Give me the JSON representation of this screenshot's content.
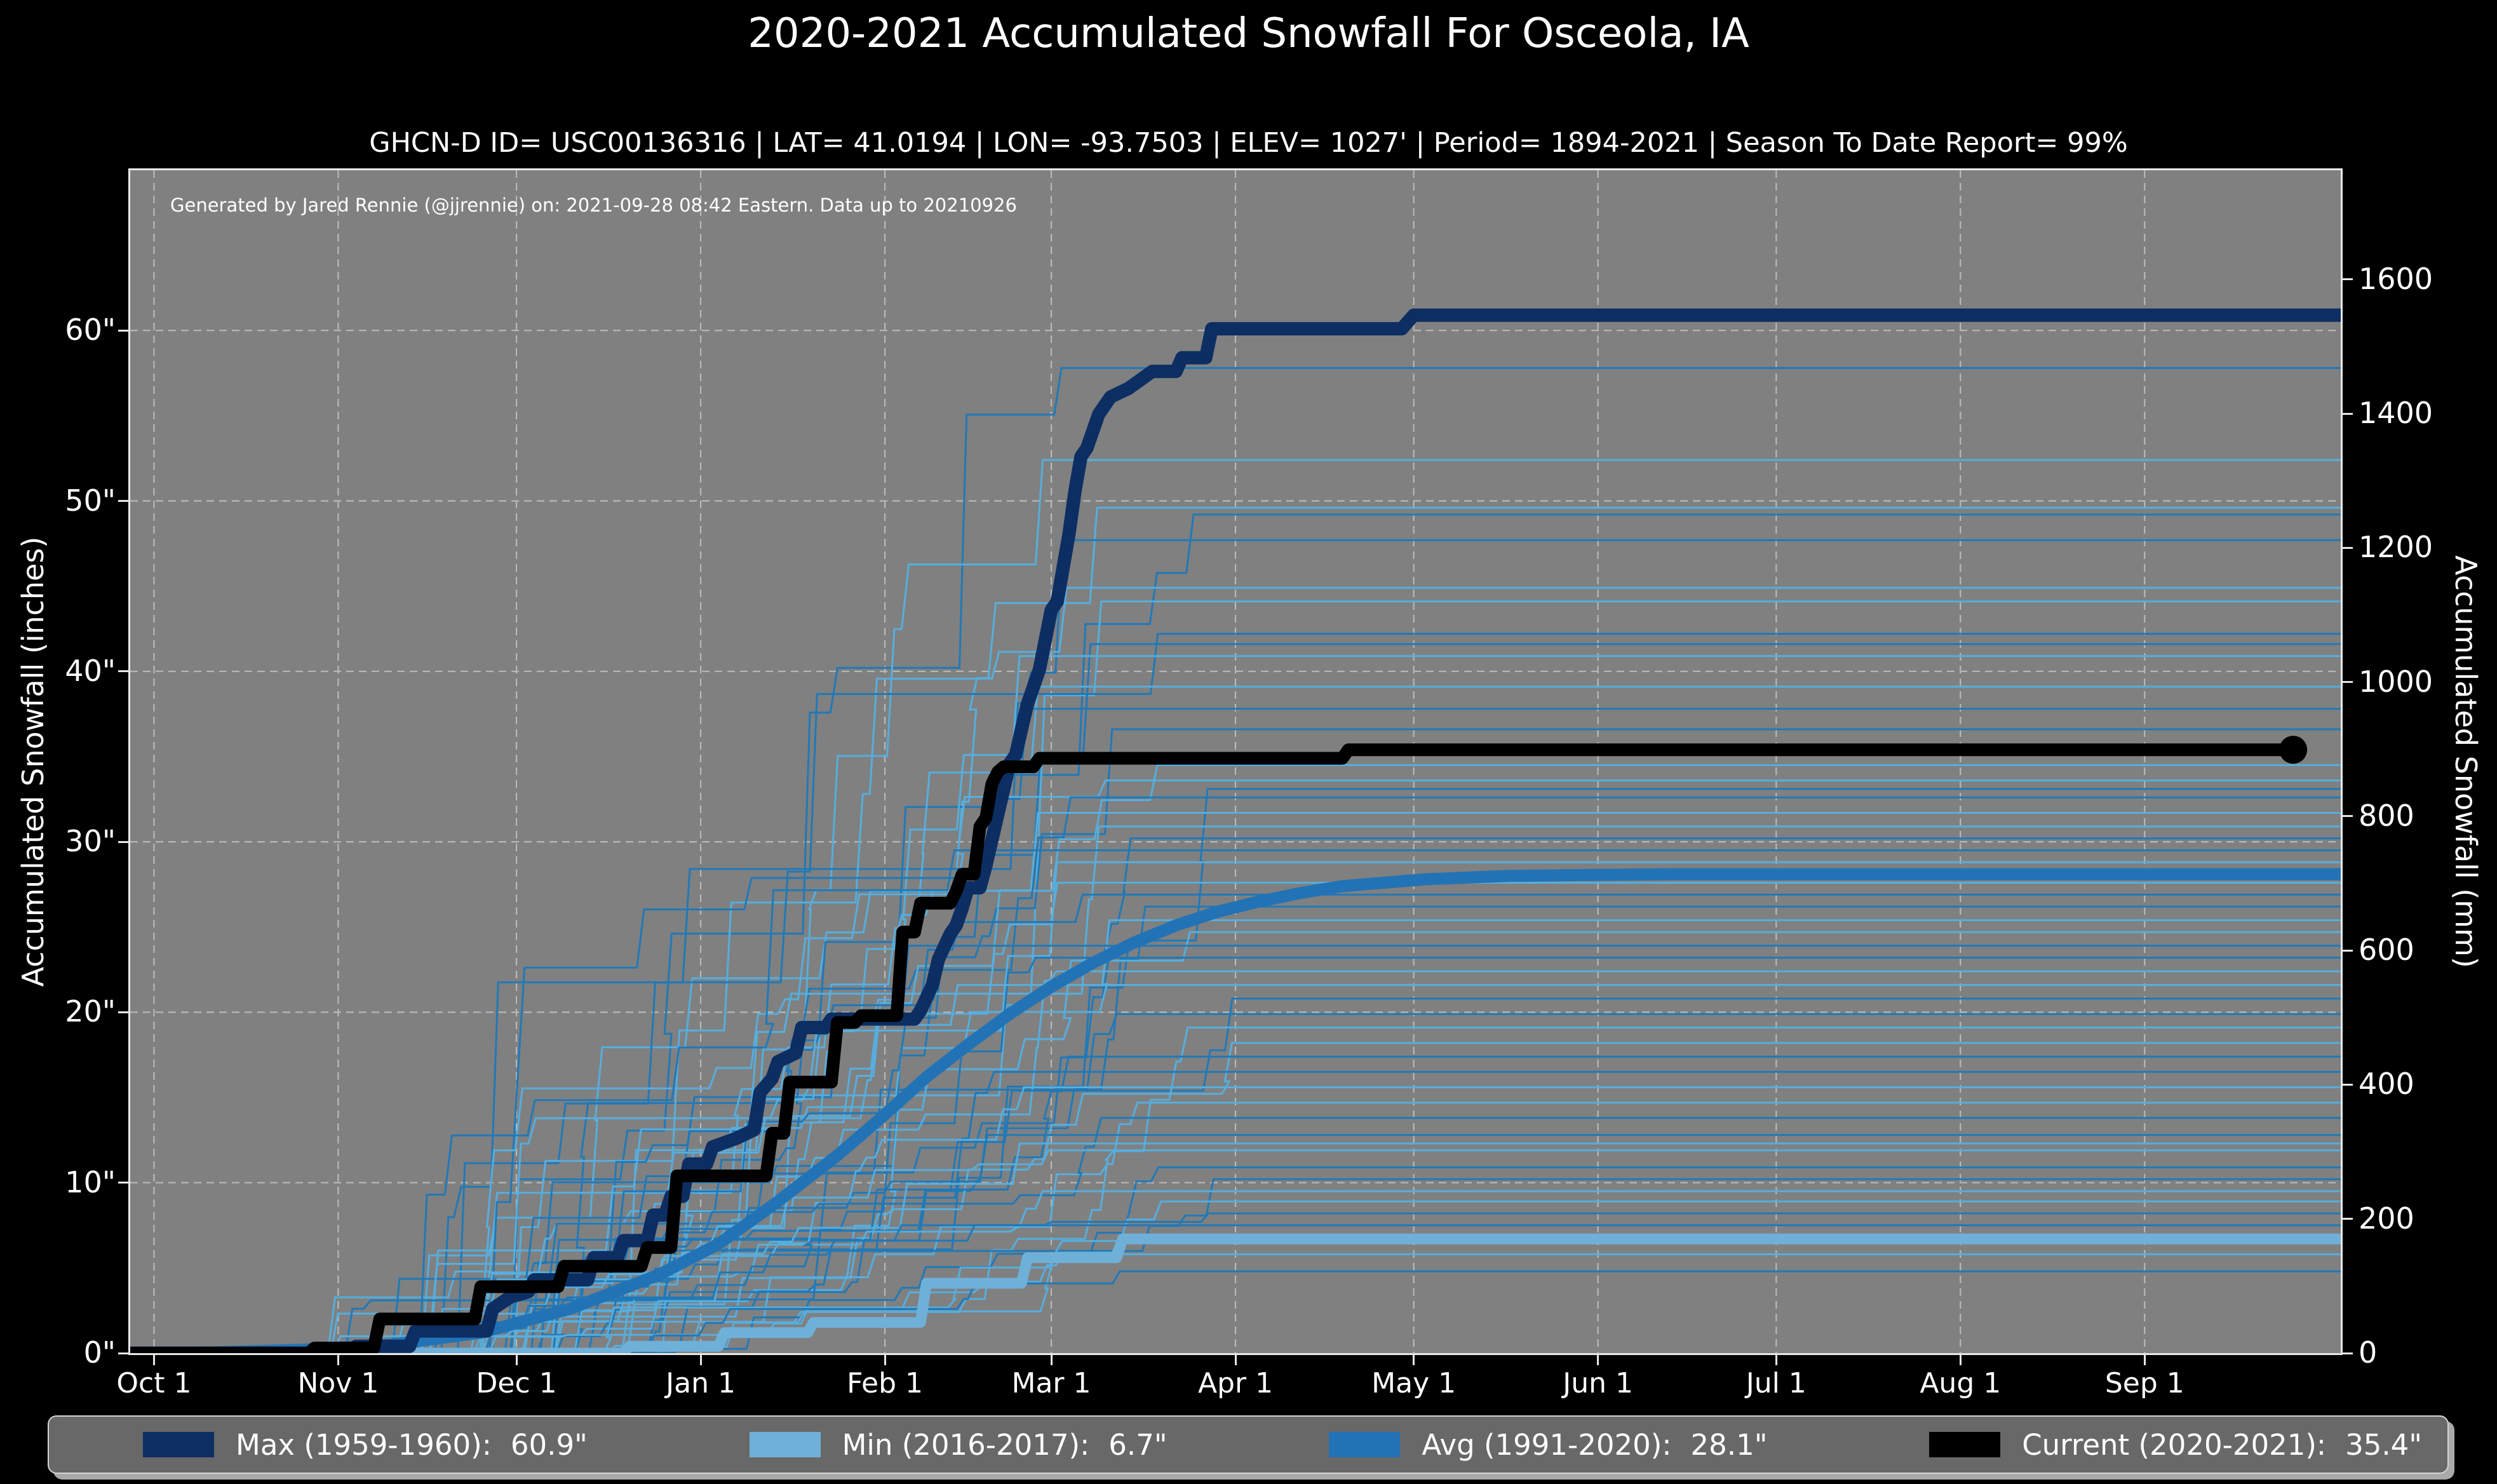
{
  "title": "2020-2021 Accumulated Snowfall For Osceola, IA",
  "subtitle": "GHCN-D ID= USC00136316 | LAT= 41.0194 | LON= -93.7503 | ELEV= 1027' | Period= 1894-2021 | Season To Date Report= 99%",
  "annotation": "Generated by Jared Rennie (@jjrennie) on: 2021-09-28 08:42 Eastern. Data up to 20210926",
  "colors": {
    "page_bg": "#000000",
    "plot_bg": "#808080",
    "grid": "#b8b8b8",
    "spine": "#e8e8e8",
    "text": "#ffffff",
    "max_line": "#0d2e63",
    "min_line": "#6fb0d9",
    "avg_line": "#2273b5",
    "current_line": "#000000",
    "legend_bg": "#686868"
  },
  "legend": {
    "entries": [
      {
        "name": "Max (1959-1960):",
        "value": "60.9\"",
        "color": "#0d2e63"
      },
      {
        "name": "Min (2016-2017):",
        "value": "6.7\"",
        "color": "#6fb0d9"
      },
      {
        "name": "Avg (1991-2020):",
        "value": "28.1\"",
        "color": "#2273b5"
      },
      {
        "name": "Current (2020-2021):",
        "value": "35.4\"",
        "color": "#000000"
      }
    ]
  },
  "chart_data": {
    "type": "line",
    "title": "2020-2021 Accumulated Snowfall For Osceola, IA",
    "ylabel_left": "Accumulated Snowfall (inches)",
    "ylabel_right": "Accumulated Snowfall (mm)",
    "x_unit": "days since Oct 1",
    "x_domain_days": [
      -4,
      368
    ],
    "y_domain_inches": [
      0,
      69.4
    ],
    "grid": {
      "style": "dashed",
      "color": "#b8b8b8"
    },
    "x_ticks": [
      {
        "label": "Oct 1",
        "day": 0
      },
      {
        "label": "Nov 1",
        "day": 31
      },
      {
        "label": "Dec 1",
        "day": 61
      },
      {
        "label": "Jan 1",
        "day": 92
      },
      {
        "label": "Feb 1",
        "day": 123
      },
      {
        "label": "Mar 1",
        "day": 151
      },
      {
        "label": "Apr 1",
        "day": 182
      },
      {
        "label": "May 1",
        "day": 212
      },
      {
        "label": "Jun 1",
        "day": 243
      },
      {
        "label": "Jul 1",
        "day": 273
      },
      {
        "label": "Aug 1",
        "day": 304
      },
      {
        "label": "Sep 1",
        "day": 335
      }
    ],
    "y_ticks_inches": [
      {
        "label": "0\"",
        "in": 0
      },
      {
        "label": "10\"",
        "in": 10
      },
      {
        "label": "20\"",
        "in": 20
      },
      {
        "label": "30\"",
        "in": 30
      },
      {
        "label": "40\"",
        "in": 40
      },
      {
        "label": "50\"",
        "in": 50
      },
      {
        "label": "60\"",
        "in": 60
      }
    ],
    "y_ticks_mm": [
      {
        "label": "0",
        "mm": 0
      },
      {
        "label": "200",
        "mm": 200
      },
      {
        "label": "400",
        "mm": 400
      },
      {
        "label": "600",
        "mm": 600
      },
      {
        "label": "800",
        "mm": 800
      },
      {
        "label": "1000",
        "mm": 1000
      },
      {
        "label": "1200",
        "mm": 1200
      },
      {
        "label": "1400",
        "mm": 1400
      },
      {
        "label": "1600",
        "mm": 1600
      }
    ],
    "series": [
      {
        "name": "Max (1959-1960)",
        "total_inches": 60.9,
        "color": "#0d2e63",
        "width": 21,
        "points": [
          [
            -4,
            0
          ],
          [
            33,
            0
          ],
          [
            34,
            0.4
          ],
          [
            43,
            0.4
          ],
          [
            44,
            1.3
          ],
          [
            56,
            1.3
          ],
          [
            57,
            2.6
          ],
          [
            60,
            3.3
          ],
          [
            63,
            3.6
          ],
          [
            64,
            4.3
          ],
          [
            73,
            4.3
          ],
          [
            74,
            5.6
          ],
          [
            78,
            5.6
          ],
          [
            79,
            6.6
          ],
          [
            83,
            6.6
          ],
          [
            84,
            8.1
          ],
          [
            86,
            8.1
          ],
          [
            87,
            9.2
          ],
          [
            89,
            9.2
          ],
          [
            90,
            11.1
          ],
          [
            93,
            11.1
          ],
          [
            94,
            12.1
          ],
          [
            98,
            12.6
          ],
          [
            101,
            13.1
          ],
          [
            102,
            15.3
          ],
          [
            104,
            16.1
          ],
          [
            105,
            17.1
          ],
          [
            108,
            17.6
          ],
          [
            109,
            19.1
          ],
          [
            113,
            19.1
          ],
          [
            114,
            19.6
          ],
          [
            128,
            19.6
          ],
          [
            129,
            20.1
          ],
          [
            131,
            21.6
          ],
          [
            132,
            23.1
          ],
          [
            134,
            24.6
          ],
          [
            135,
            25.1
          ],
          [
            136,
            26.1
          ],
          [
            137,
            27.3
          ],
          [
            139,
            27.3
          ],
          [
            140,
            28.6
          ],
          [
            141,
            30.1
          ],
          [
            142,
            31.6
          ],
          [
            143,
            33.1
          ],
          [
            144,
            34.6
          ],
          [
            145,
            35.1
          ],
          [
            146,
            36.6
          ],
          [
            147,
            38.1
          ],
          [
            149,
            40.1
          ],
          [
            151,
            43.6
          ],
          [
            152,
            44.1
          ],
          [
            154,
            48.1
          ],
          [
            155,
            50.6
          ],
          [
            156,
            52.6
          ],
          [
            157,
            53.1
          ],
          [
            159,
            55.1
          ],
          [
            161,
            56.1
          ],
          [
            164,
            56.6
          ],
          [
            166,
            57.1
          ],
          [
            168,
            57.6
          ],
          [
            172,
            57.6
          ],
          [
            173,
            58.4
          ],
          [
            177,
            58.4
          ],
          [
            178,
            60.1
          ],
          [
            210,
            60.1
          ],
          [
            212,
            60.9
          ],
          [
            368,
            60.9
          ]
        ]
      },
      {
        "name": "Min (2016-2017)",
        "total_inches": 6.7,
        "color": "#6fb0d9",
        "width": 17,
        "points": [
          [
            -4,
            0
          ],
          [
            79,
            0
          ],
          [
            80,
            0.4
          ],
          [
            95,
            0.4
          ],
          [
            96,
            1.2
          ],
          [
            110,
            1.2
          ],
          [
            111,
            1.8
          ],
          [
            129,
            1.8
          ],
          [
            130,
            4.1
          ],
          [
            146,
            4.1
          ],
          [
            147,
            5.6
          ],
          [
            162,
            5.6
          ],
          [
            163,
            6.7
          ],
          [
            368,
            6.7
          ]
        ]
      },
      {
        "name": "Avg (1991-2020)",
        "total_inches": 28.1,
        "color": "#2273b5",
        "width": 19,
        "points": [
          [
            -4,
            0
          ],
          [
            10,
            0.05
          ],
          [
            25,
            0.2
          ],
          [
            40,
            0.5
          ],
          [
            55,
            1.2
          ],
          [
            70,
            2.6
          ],
          [
            85,
            4.6
          ],
          [
            95,
            6.4
          ],
          [
            105,
            8.9
          ],
          [
            115,
            11.6
          ],
          [
            123,
            14.0
          ],
          [
            130,
            16.2
          ],
          [
            137,
            18.1
          ],
          [
            144,
            19.9
          ],
          [
            151,
            21.5
          ],
          [
            158,
            22.9
          ],
          [
            165,
            24.1
          ],
          [
            172,
            25.1
          ],
          [
            179,
            25.9
          ],
          [
            186,
            26.5
          ],
          [
            193,
            27.0
          ],
          [
            200,
            27.4
          ],
          [
            207,
            27.6
          ],
          [
            214,
            27.8
          ],
          [
            221,
            27.9
          ],
          [
            228,
            28.0
          ],
          [
            240,
            28.05
          ],
          [
            255,
            28.1
          ],
          [
            368,
            28.1
          ]
        ]
      },
      {
        "name": "Current (2020-2021)",
        "total_inches": 35.4,
        "color": "#000000",
        "width": 20,
        "end_marker": {
          "day": 360,
          "inches": 35.4
        },
        "points": [
          [
            -4,
            0
          ],
          [
            26,
            0
          ],
          [
            27,
            0.3
          ],
          [
            37,
            0.3
          ],
          [
            38,
            2.0
          ],
          [
            54,
            2.0
          ],
          [
            55,
            3.9
          ],
          [
            68,
            3.9
          ],
          [
            69,
            5.1
          ],
          [
            82,
            5.1
          ],
          [
            83,
            6.2
          ],
          [
            87,
            6.2
          ],
          [
            88,
            10.4
          ],
          [
            103,
            10.4
          ],
          [
            104,
            12.9
          ],
          [
            106,
            12.9
          ],
          [
            107,
            15.9
          ],
          [
            114,
            15.9
          ],
          [
            115,
            19.4
          ],
          [
            118,
            19.4
          ],
          [
            119,
            19.8
          ],
          [
            125,
            19.8
          ],
          [
            126,
            24.7
          ],
          [
            128,
            24.7
          ],
          [
            129,
            26.4
          ],
          [
            134,
            26.4
          ],
          [
            135,
            27.1
          ],
          [
            136,
            28.1
          ],
          [
            138,
            28.1
          ],
          [
            139,
            30.9
          ],
          [
            140,
            31.4
          ],
          [
            141,
            33.4
          ],
          [
            142,
            34.1
          ],
          [
            143,
            34.4
          ],
          [
            148,
            34.4
          ],
          [
            149,
            34.9
          ],
          [
            200,
            34.9
          ],
          [
            201,
            35.4
          ],
          [
            360,
            35.4
          ]
        ]
      }
    ],
    "background_seasons": {
      "description": "thin step lines, one per historical season 1894-2021, flat season totals at right edge (inches)",
      "colors": [
        "#2079b8",
        "#56aede"
      ],
      "width": 3,
      "ends_in": [
        57.8,
        52.4,
        49.6,
        49.2,
        47.7,
        44.9,
        44.1,
        42.2,
        41.6,
        40.9,
        39.1,
        37.8,
        36.6,
        34.5,
        33.6,
        33.1,
        32.6,
        31.7,
        30.9,
        30.2,
        29.5,
        28.8,
        27.6,
        26.9,
        26.2,
        25.4,
        24.7,
        23.9,
        23.2,
        22.4,
        21.6,
        20.8,
        19.9,
        19.1,
        18.2,
        17.4,
        16.5,
        15.6,
        14.7,
        13.8,
        12.8,
        12.3,
        11.9,
        10.9,
        10.2,
        9.5,
        8.9,
        8.2,
        7.5,
        6.9,
        5.8,
        4.8
      ]
    }
  }
}
